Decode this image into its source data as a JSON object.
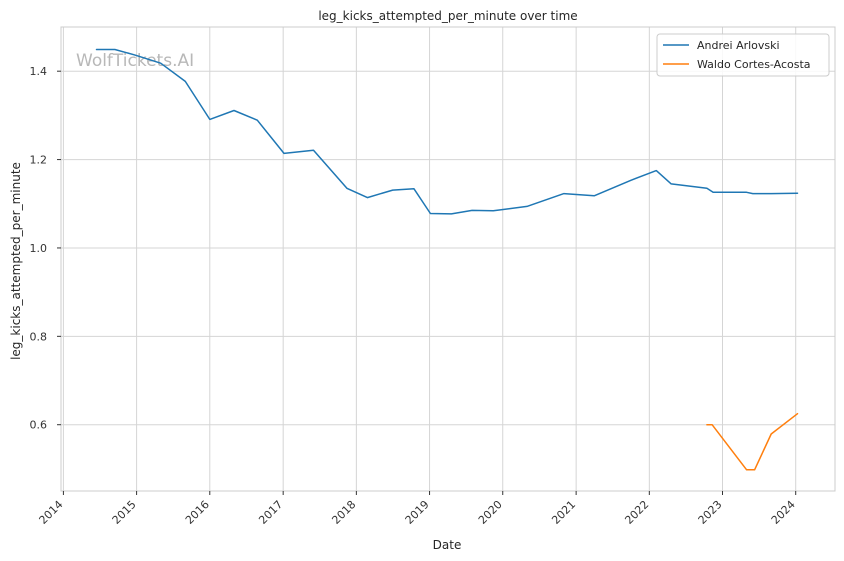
{
  "chart_data": {
    "type": "line",
    "title": "leg_kicks_attempted_per_minute over time",
    "xlabel": "Date",
    "ylabel": "leg_kicks_attempted_per_minute",
    "watermark": "WolfTickets.AI",
    "x_ticks": [
      "2014",
      "2015",
      "2016",
      "2017",
      "2018",
      "2019",
      "2020",
      "2021",
      "2022",
      "2023",
      "2024"
    ],
    "y_ticks": [
      "0.6",
      "0.8",
      "1.0",
      "1.2",
      "1.4"
    ],
    "xlim": [
      "2013-12-20",
      "2024-07-15"
    ],
    "ylim": [
      0.45,
      1.5
    ],
    "grid": true,
    "legend_position": "top-right",
    "series": [
      {
        "name": "Andrei Arlovski",
        "color": "#1f77b4",
        "x": [
          "2014-06-15",
          "2014-09-15",
          "2014-12-20",
          "2015-05-01",
          "2015-09-01",
          "2016-01-01",
          "2016-05-01",
          "2016-08-25",
          "2017-01-05",
          "2017-06-01",
          "2017-11-15",
          "2018-02-25",
          "2018-07-01",
          "2018-10-15",
          "2019-01-05",
          "2019-04-20",
          "2019-08-01",
          "2019-11-15",
          "2020-05-01",
          "2020-11-01",
          "2021-04-01",
          "2021-10-01",
          "2022-02-05",
          "2022-04-20",
          "2022-10-15",
          "2022-11-15",
          "2023-05-01",
          "2023-06-01",
          "2023-09-01",
          "2024-01-10"
        ],
        "y": [
          1.449,
          1.449,
          1.437,
          1.418,
          1.377,
          1.291,
          1.311,
          1.289,
          1.214,
          1.221,
          1.135,
          1.114,
          1.131,
          1.134,
          1.078,
          1.077,
          1.085,
          1.084,
          1.094,
          1.123,
          1.118,
          1.153,
          1.175,
          1.145,
          1.135,
          1.126,
          1.126,
          1.123,
          1.123,
          1.124
        ]
      },
      {
        "name": "Waldo Cortes-Acosta",
        "color": "#ff7f0e",
        "x": [
          "2022-10-15",
          "2022-11-10",
          "2023-05-01",
          "2023-06-10",
          "2023-09-01",
          "2024-01-10"
        ],
        "y": [
          0.6,
          0.6,
          0.498,
          0.498,
          0.579,
          0.625
        ]
      }
    ]
  }
}
